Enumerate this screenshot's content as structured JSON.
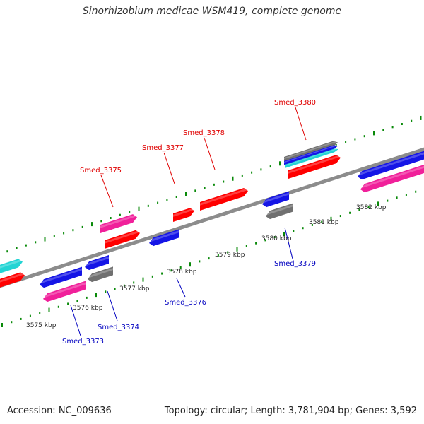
{
  "header": {
    "title": "Sinorhizobium medicae WSM419, complete genome"
  },
  "footer": {
    "accession": "Accession: NC_009636",
    "summary": "Topology: circular; Length: 3,781,904 bp; Genes: 3,592"
  },
  "colors": {
    "backbone": "#8c8c8c",
    "tick": "#0a8a0a",
    "forward_label": "#e00000",
    "reverse_label": "#0000c0",
    "red": "#ff0000",
    "blue": "#1515e6",
    "pink": "#f0209a",
    "cyan": "#22d4d4",
    "gray": "#707070"
  },
  "map": {
    "gene_labels": [
      "Smed_3380",
      "Smed_3378",
      "Smed_3377",
      "Smed_3375",
      "Smed_3379",
      "Smed_3376",
      "Smed_3374",
      "Smed_3373"
    ],
    "kbp_labels": [
      "3575 kbp",
      "3576 kbp",
      "3577 kbp",
      "3578 kbp",
      "3579 kbp",
      "3580 kbp",
      "3581 kbp",
      "3582 kbp"
    ]
  }
}
